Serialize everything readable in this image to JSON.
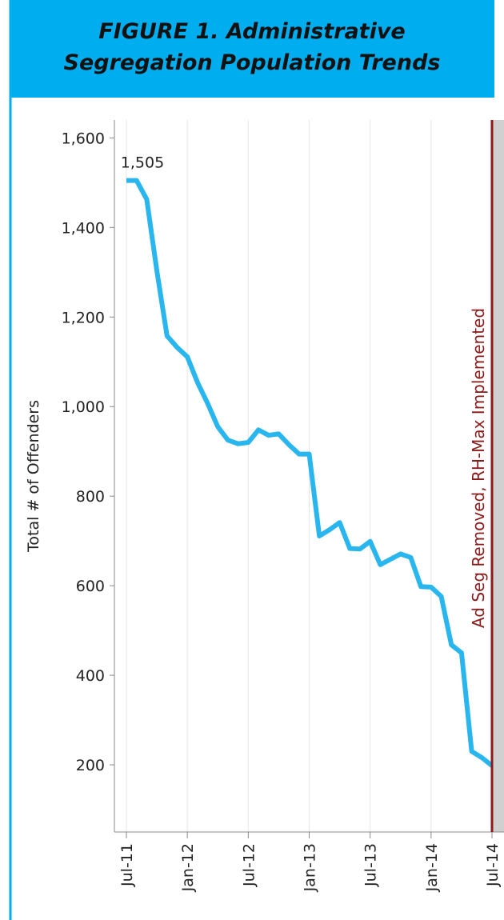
{
  "chart_data": {
    "type": "line",
    "title": "FIGURE 1. Administrative Segregation Population Trends",
    "y_label": "Total # of Offenders",
    "categories": [
      "Jul-11",
      null,
      null,
      null,
      null,
      null,
      "Jan-12",
      null,
      null,
      null,
      null,
      null,
      "Jul-12",
      null,
      null,
      null,
      null,
      null,
      "Jan-13",
      null,
      null,
      null,
      null,
      null,
      "Jul-13",
      null,
      null,
      null,
      null,
      null,
      "Jan-14",
      null,
      null,
      null,
      null,
      null,
      "Jul-14"
    ],
    "series": [
      {
        "name": "Total # of Offenders",
        "color": "#29b6ef",
        "values": [
          1505,
          1505,
          1463,
          1303,
          1158,
          1132,
          1111,
          1054,
          1007,
          955,
          925,
          917,
          920,
          948,
          936,
          939,
          915,
          894,
          894,
          711,
          725,
          741,
          683,
          682,
          699,
          647,
          659,
          671,
          663,
          598,
          597,
          576,
          468,
          450,
          230,
          216,
          198
        ],
        "value_labels": [
          "1,505",
          null,
          null,
          null,
          null,
          null,
          null,
          null,
          null,
          null,
          null,
          null,
          null,
          null,
          null,
          null,
          null,
          null,
          null,
          null,
          null,
          null,
          null,
          null,
          null,
          null,
          null,
          null,
          null,
          null,
          null,
          null,
          null,
          null,
          null,
          null,
          null
        ]
      }
    ],
    "ylim": [
      50,
      1640
    ],
    "yticks": [
      {
        "value": 200,
        "label": "200"
      },
      {
        "value": 400,
        "label": "400"
      },
      {
        "value": 600,
        "label": "600"
      },
      {
        "value": 800,
        "label": "800"
      },
      {
        "value": 1000,
        "label": "1,000"
      },
      {
        "value": 1200,
        "label": "1,200"
      },
      {
        "value": 1400,
        "label": "1,400"
      },
      {
        "value": 1600,
        "label": "1,600"
      }
    ],
    "grid": true,
    "annotations": [
      {
        "text": "Ad Seg Removed, RH-Max Implemented",
        "x": "Jul-14",
        "color": "#8b1a1a"
      }
    ]
  }
}
